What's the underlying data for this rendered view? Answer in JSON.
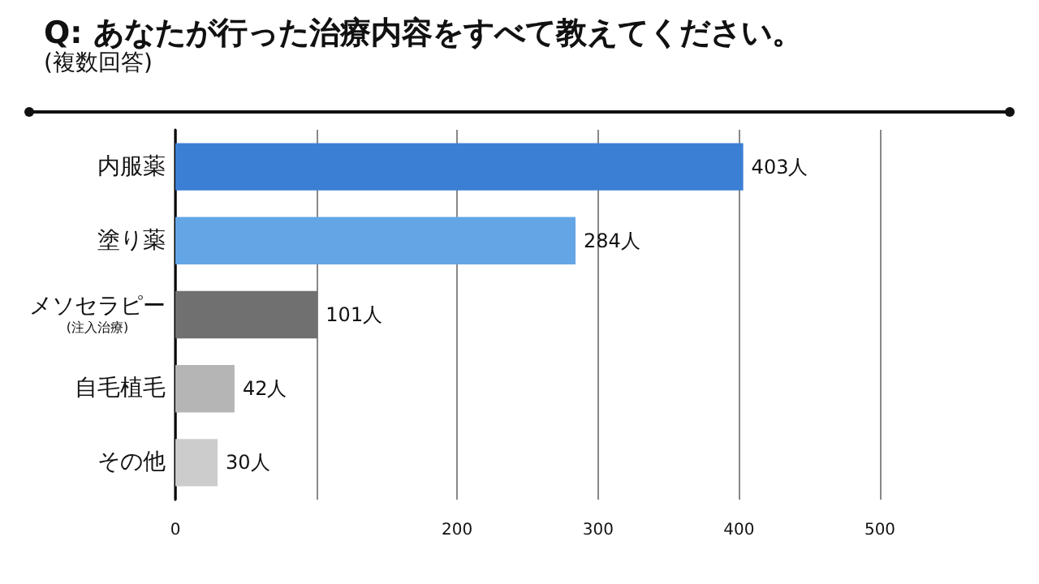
{
  "chart_data": {
    "type": "bar",
    "orientation": "horizontal",
    "title": "Q: あなたが行った治療内容をすべて教えてください。",
    "subtitle": "(複数回答)",
    "categories": [
      "内服薬",
      "塗り薬",
      "メソセラピー\n(注入治療)",
      "自毛植毛",
      "その他"
    ],
    "values": [
      403,
      284,
      101,
      42,
      30
    ],
    "colors": [
      "#3b7fd4",
      "#64a5e6",
      "#707070",
      "#b5b5b5",
      "#cccccc"
    ],
    "value_labels": [
      "403人",
      "284人",
      "101人",
      "42人",
      "30人"
    ],
    "xlim": [
      0,
      500
    ],
    "xticks": [
      0,
      {
        "value": 100,
        "label": null
      },
      200,
      300,
      400,
      500
    ],
    "grid": "x"
  }
}
